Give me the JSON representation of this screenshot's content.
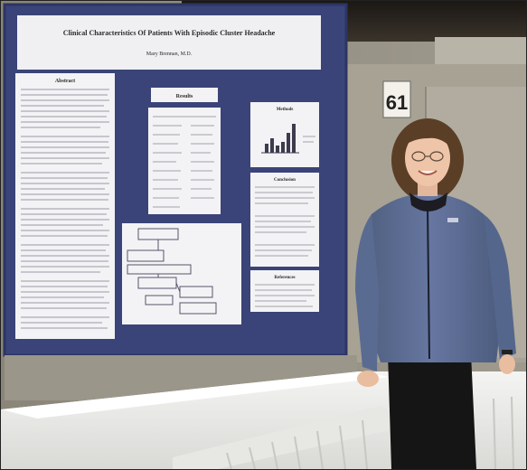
{
  "photo": {
    "booth_number": "61",
    "poster": {
      "title": "Clinical Characteristics Of Patients With Episodic Cluster Headache",
      "author": "Mary Brennan, M.D.",
      "sections": {
        "left_column": "Abstract",
        "center_table": "Results",
        "right_top": "Methods",
        "right_mid": "Conclusion",
        "right_low": "References"
      }
    }
  }
}
